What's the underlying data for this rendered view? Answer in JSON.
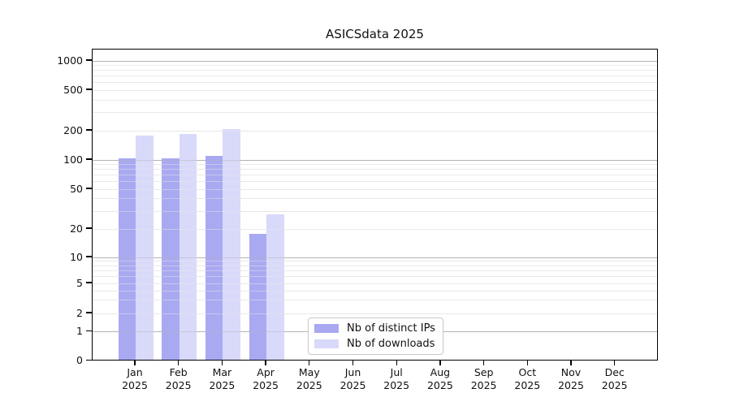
{
  "chart_data": {
    "type": "bar",
    "title": "ASICSdata 2025",
    "month_labels": [
      "Jan",
      "Feb",
      "Mar",
      "Apr",
      "May",
      "Jun",
      "Jul",
      "Aug",
      "Sep",
      "Oct",
      "Nov",
      "Dec"
    ],
    "year_label": "2025",
    "x_categories": [
      "Jan 2025",
      "Feb 2025",
      "Mar 2025",
      "Apr 2025",
      "May 2025",
      "Jun 2025",
      "Jul 2025",
      "Aug 2025",
      "Sep 2025",
      "Oct 2025",
      "Nov 2025",
      "Dec 2025"
    ],
    "series": [
      {
        "name": "Nb of distinct IPs",
        "color": "#a9a9f2",
        "values": [
          100,
          100,
          105,
          17,
          0,
          0,
          0,
          0,
          0,
          0,
          0,
          0
        ]
      },
      {
        "name": "Nb of downloads",
        "color": "#d9d9fa",
        "values": [
          170,
          178,
          200,
          27,
          0,
          0,
          0,
          0,
          0,
          0,
          0,
          0
        ]
      }
    ],
    "y_axis": {
      "ticks": [
        0,
        1,
        2,
        5,
        10,
        20,
        50,
        100,
        200,
        500,
        1000
      ],
      "scale": "log-like with 0 baseline",
      "ylim": [
        0,
        1300
      ],
      "major_grid_values": [
        1,
        10,
        100,
        1000
      ],
      "major_grid_color": "#b3b3b3",
      "minor_grid_color": "#e9e9e9"
    },
    "legend": {
      "position": "inside lower-center-left",
      "entries": [
        "Nb of distinct IPs",
        "Nb of downloads"
      ]
    },
    "grid": "horizontal major+minor, drawn over translucent bars"
  }
}
